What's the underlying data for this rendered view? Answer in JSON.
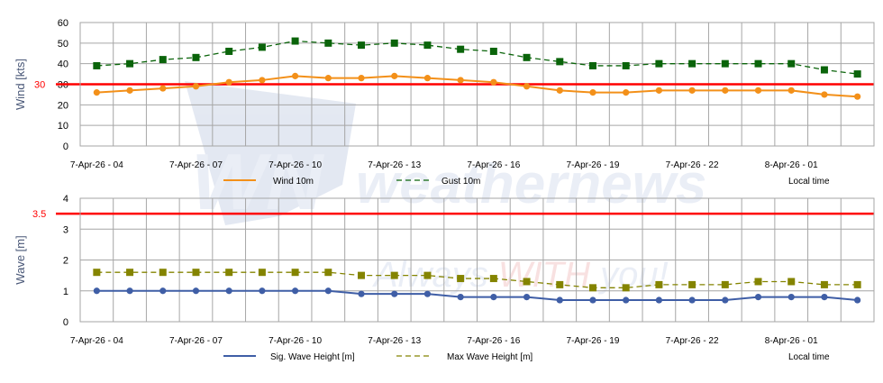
{
  "watermark": {
    "logo": "WN",
    "brand": "weathernews",
    "slogan_prefix": "Always ",
    "slogan_mid": "WITH",
    "slogan_suffix": " you!"
  },
  "chart_data": [
    {
      "type": "line",
      "id": "wind",
      "ylabel": "Wind [kts]",
      "ylim": [
        0,
        60
      ],
      "yticks": [
        0,
        10,
        20,
        30,
        40,
        50,
        60
      ],
      "grid": true,
      "threshold": {
        "value": 30,
        "label": "30",
        "color": "#ff0000"
      },
      "x": [
        "7-Apr-26 - 04",
        "05",
        "06",
        "7-Apr-26 - 07",
        "08",
        "09",
        "7-Apr-26 - 10",
        "11",
        "12",
        "7-Apr-26 - 13",
        "14",
        "15",
        "7-Apr-26 - 16",
        "17",
        "18",
        "7-Apr-26 - 19",
        "20",
        "21",
        "7-Apr-26 - 22",
        "23",
        "00",
        "8-Apr-26 - 01",
        "02",
        "03"
      ],
      "xtick_labels": [
        "7-Apr-26 - 04",
        "7-Apr-26 - 07",
        "7-Apr-26 - 10",
        "7-Apr-26 - 13",
        "7-Apr-26 - 16",
        "7-Apr-26 - 19",
        "7-Apr-26 - 22",
        "8-Apr-26 - 01"
      ],
      "xlabel": "Local time",
      "legend": "bottom",
      "series": [
        {
          "name": "Wind 10m",
          "color": "#f39019",
          "marker": "circle",
          "dash": false,
          "values": [
            26,
            27,
            28,
            29,
            31,
            32,
            34,
            33,
            33,
            34,
            33,
            32,
            31,
            29,
            27,
            26,
            26,
            27,
            27,
            27,
            27,
            27,
            25,
            24
          ]
        },
        {
          "name": "Gust 10m",
          "color": "#0a640a",
          "marker": "square",
          "dash": true,
          "values": [
            39,
            40,
            42,
            43,
            46,
            48,
            51,
            50,
            49,
            50,
            49,
            47,
            46,
            43,
            41,
            39,
            39,
            40,
            40,
            40,
            40,
            40,
            37,
            35
          ]
        }
      ]
    },
    {
      "type": "line",
      "id": "wave",
      "ylabel": "Wave [m]",
      "ylim": [
        0,
        4
      ],
      "yticks": [
        0,
        1,
        2,
        3,
        4
      ],
      "grid": true,
      "threshold": {
        "value": 3.5,
        "label": "3.5",
        "color": "#ff0000"
      },
      "xtick_labels": [
        "7-Apr-26 - 04",
        "7-Apr-26 - 07",
        "7-Apr-26 - 10",
        "7-Apr-26 - 13",
        "7-Apr-26 - 16",
        "7-Apr-26 - 19",
        "7-Apr-26 - 22",
        "8-Apr-26 - 01"
      ],
      "xlabel": "Local time",
      "legend": "bottom",
      "series": [
        {
          "name": "Sig. Wave Height [m]",
          "color": "#3f5ea6",
          "marker": "circle",
          "dash": false,
          "values": [
            1,
            1,
            1,
            1,
            1,
            1,
            1,
            1,
            0.9,
            0.9,
            0.9,
            0.8,
            0.8,
            0.8,
            0.7,
            0.7,
            0.7,
            0.7,
            0.7,
            0.7,
            0.8,
            0.8,
            0.8,
            0.7
          ]
        },
        {
          "name": "Max Wave Height [m]",
          "color": "#848400",
          "marker": "square",
          "dash": true,
          "values": [
            1.6,
            1.6,
            1.6,
            1.6,
            1.6,
            1.6,
            1.6,
            1.6,
            1.5,
            1.5,
            1.5,
            1.4,
            1.4,
            1.3,
            1.2,
            1.1,
            1.1,
            1.2,
            1.2,
            1.2,
            1.3,
            1.3,
            1.2,
            1.2
          ]
        }
      ]
    }
  ]
}
